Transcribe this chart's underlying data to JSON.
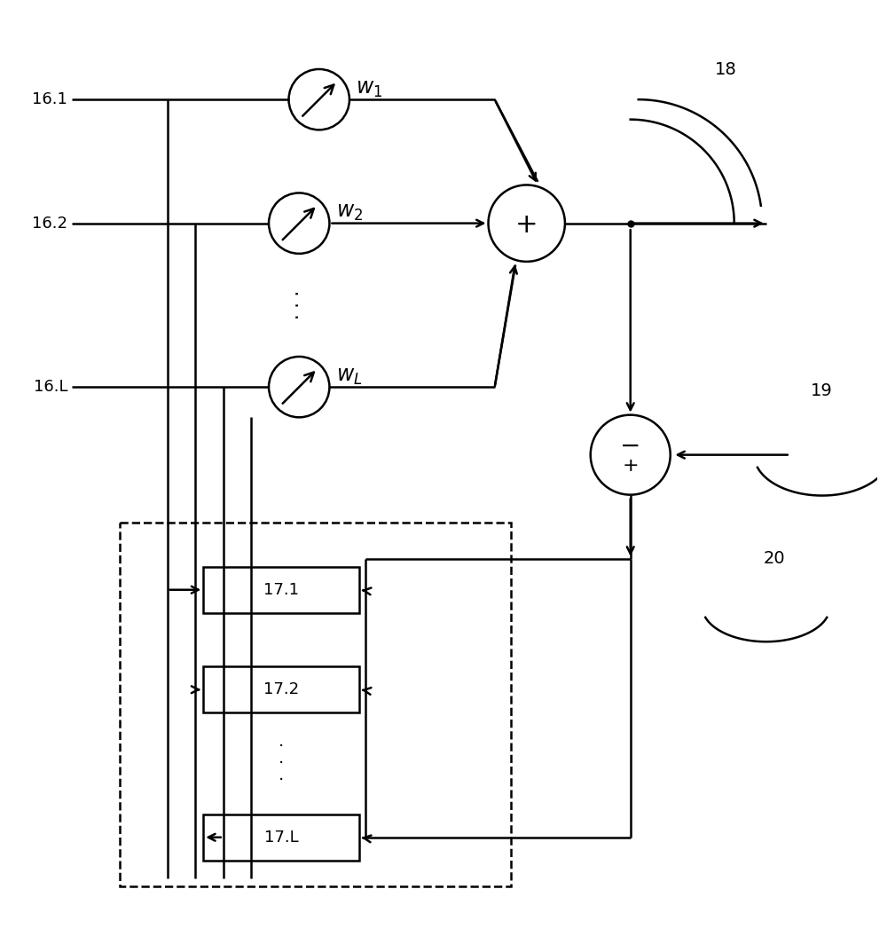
{
  "bg_color": "#ffffff",
  "lw": 1.8,
  "label_161": "16.1",
  "label_162": "16.2",
  "label_16L": "16.L",
  "label_w1": "$w_1$",
  "label_w2": "$w_2$",
  "label_wL": "$w_L$",
  "label_171": "17.1",
  "label_172": "17.2",
  "label_17L": "17.L",
  "label_18": "18",
  "label_19": "19",
  "label_20": "20",
  "figsize": [
    10.09,
    10.73
  ],
  "dpi": 100
}
